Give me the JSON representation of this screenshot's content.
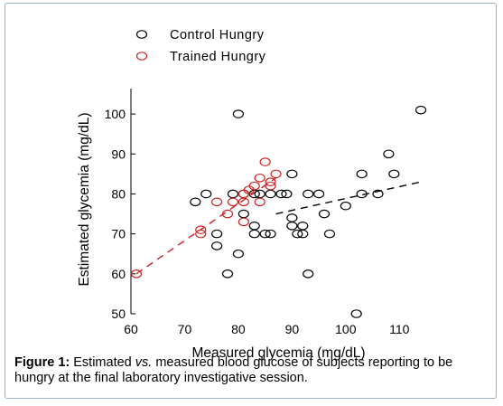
{
  "chart_data": {
    "type": "scatter",
    "title": "",
    "xlabel": "Measured glycemia (mg/dL)",
    "ylabel": "Estimated glycemia (mg/dL)",
    "xlim": [
      60,
      115
    ],
    "ylim": [
      50,
      105
    ],
    "xticks": [
      60,
      70,
      80,
      90,
      100,
      110
    ],
    "yticks": [
      50,
      60,
      70,
      80,
      90,
      100
    ],
    "legend_position": "top-left",
    "series": [
      {
        "name": "Control Hungry",
        "color": "#000000",
        "marker": "open-circle",
        "points": [
          [
            72,
            78
          ],
          [
            74,
            80
          ],
          [
            76,
            70
          ],
          [
            76,
            67
          ],
          [
            78,
            60
          ],
          [
            79,
            80
          ],
          [
            80,
            65
          ],
          [
            80,
            100
          ],
          [
            81,
            75
          ],
          [
            81,
            80
          ],
          [
            83,
            80
          ],
          [
            83,
            70
          ],
          [
            83,
            72
          ],
          [
            84,
            80
          ],
          [
            85,
            70
          ],
          [
            86,
            70
          ],
          [
            86,
            80
          ],
          [
            88,
            80
          ],
          [
            89,
            80
          ],
          [
            90,
            85
          ],
          [
            90,
            74
          ],
          [
            90,
            72
          ],
          [
            91,
            70
          ],
          [
            92,
            72
          ],
          [
            92,
            70
          ],
          [
            93,
            80
          ],
          [
            93,
            60
          ],
          [
            95,
            80
          ],
          [
            96,
            75
          ],
          [
            97,
            70
          ],
          [
            100,
            77
          ],
          [
            102,
            50
          ],
          [
            103,
            85
          ],
          [
            103,
            80
          ],
          [
            106,
            80
          ],
          [
            108,
            90
          ],
          [
            109,
            85
          ],
          [
            114,
            101
          ]
        ]
      },
      {
        "name": "Trained Hungry",
        "color": "#cc2222",
        "marker": "open-circle",
        "points": [
          [
            61,
            60
          ],
          [
            73,
            70
          ],
          [
            73,
            71
          ],
          [
            76,
            78
          ],
          [
            78,
            75
          ],
          [
            79,
            78
          ],
          [
            81,
            80
          ],
          [
            81,
            78
          ],
          [
            81,
            73
          ],
          [
            82,
            81
          ],
          [
            83,
            82
          ],
          [
            84,
            84
          ],
          [
            84,
            78
          ],
          [
            85,
            88
          ],
          [
            86,
            83
          ],
          [
            86,
            82
          ],
          [
            87,
            85
          ]
        ]
      }
    ],
    "trendlines": [
      {
        "series": "Trained Hungry",
        "color": "#cc2222",
        "from": [
          61,
          60
        ],
        "to": [
          87,
          84
        ]
      },
      {
        "series": "Control Hungry",
        "color": "#000000",
        "from": [
          87,
          75
        ],
        "to": [
          114,
          83
        ]
      }
    ]
  },
  "caption": {
    "label": "Figure 1:",
    "text_before": " Estimated ",
    "italic": "vs.",
    "text_after": " measured blood glucose of subjects reporting to be hungry at the final laboratory investigative session."
  }
}
